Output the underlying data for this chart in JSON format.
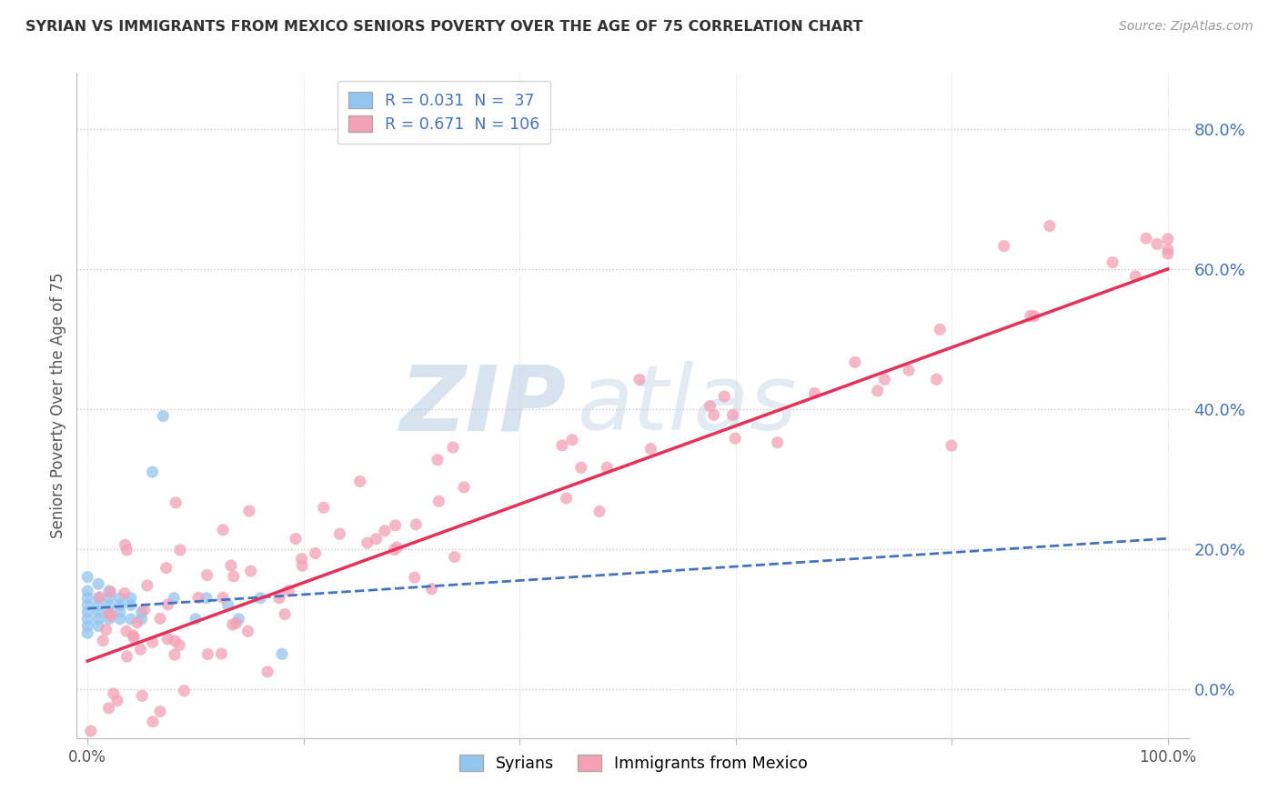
{
  "title": "SYRIAN VS IMMIGRANTS FROM MEXICO SENIORS POVERTY OVER THE AGE OF 75 CORRELATION CHART",
  "source": "Source: ZipAtlas.com",
  "ylabel": "Seniors Poverty Over the Age of 75",
  "legend_entry1": "R = 0.031  N =  37",
  "legend_entry2": "R = 0.671  N = 106",
  "legend_label1": "Syrians",
  "legend_label2": "Immigrants from Mexico",
  "syrian_color": "#92c5f0",
  "mexico_color": "#f4a0b5",
  "syrian_line_color": "#4472c4",
  "mexico_line_color": "#e8305a",
  "background_color": "#ffffff",
  "grid_color": "#c8c8c8",
  "R_syrian": 0.031,
  "R_mexico": 0.671,
  "N_syrian": 37,
  "N_mexico": 106,
  "watermark_zip": "ZIP",
  "watermark_atlas": "atlas",
  "title_color": "#333333",
  "source_color": "#999999",
  "axis_label_color": "#4472c4",
  "ytick_vals": [
    0.0,
    0.2,
    0.4,
    0.6,
    0.8
  ],
  "ylim_low": -0.07,
  "ylim_high": 0.88,
  "xlim_low": -0.01,
  "xlim_high": 1.02
}
